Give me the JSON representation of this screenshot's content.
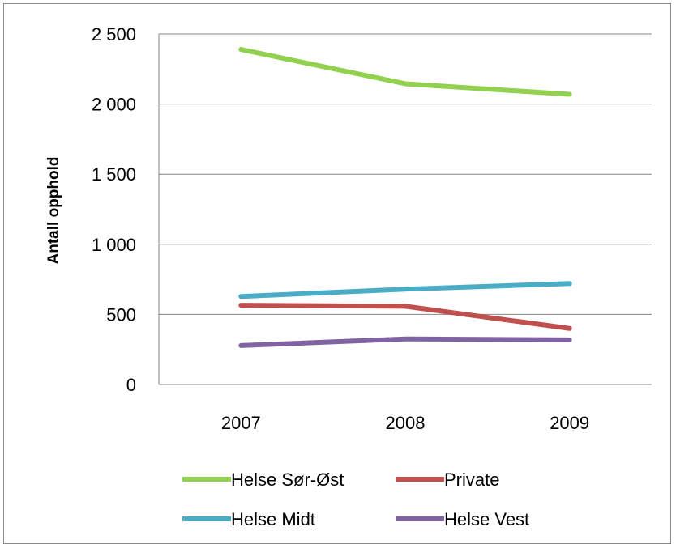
{
  "chart_data": {
    "type": "line",
    "title": "",
    "xlabel": "",
    "ylabel": "Antall opphold",
    "categories": [
      "2007",
      "2008",
      "2009"
    ],
    "ylim": [
      0,
      2500
    ],
    "yticks": [
      0,
      500,
      1000,
      1500,
      2000,
      2500
    ],
    "ytick_labels": [
      "0",
      "500",
      "1 000",
      "1 500",
      "2 000",
      "2 500"
    ],
    "grid": true,
    "legend_position": "bottom",
    "series": [
      {
        "name": "Helse Sør-Øst",
        "values": [
          2390,
          2145,
          2070
        ],
        "color": "#92d050"
      },
      {
        "name": "Private",
        "values": [
          565,
          558,
          400
        ],
        "color": "#c0504d"
      },
      {
        "name": "Helse Midt",
        "values": [
          628,
          680,
          720
        ],
        "color": "#4bacc6"
      },
      {
        "name": "Helse Vest",
        "values": [
          278,
          325,
          318
        ],
        "color": "#8064a2"
      }
    ]
  }
}
